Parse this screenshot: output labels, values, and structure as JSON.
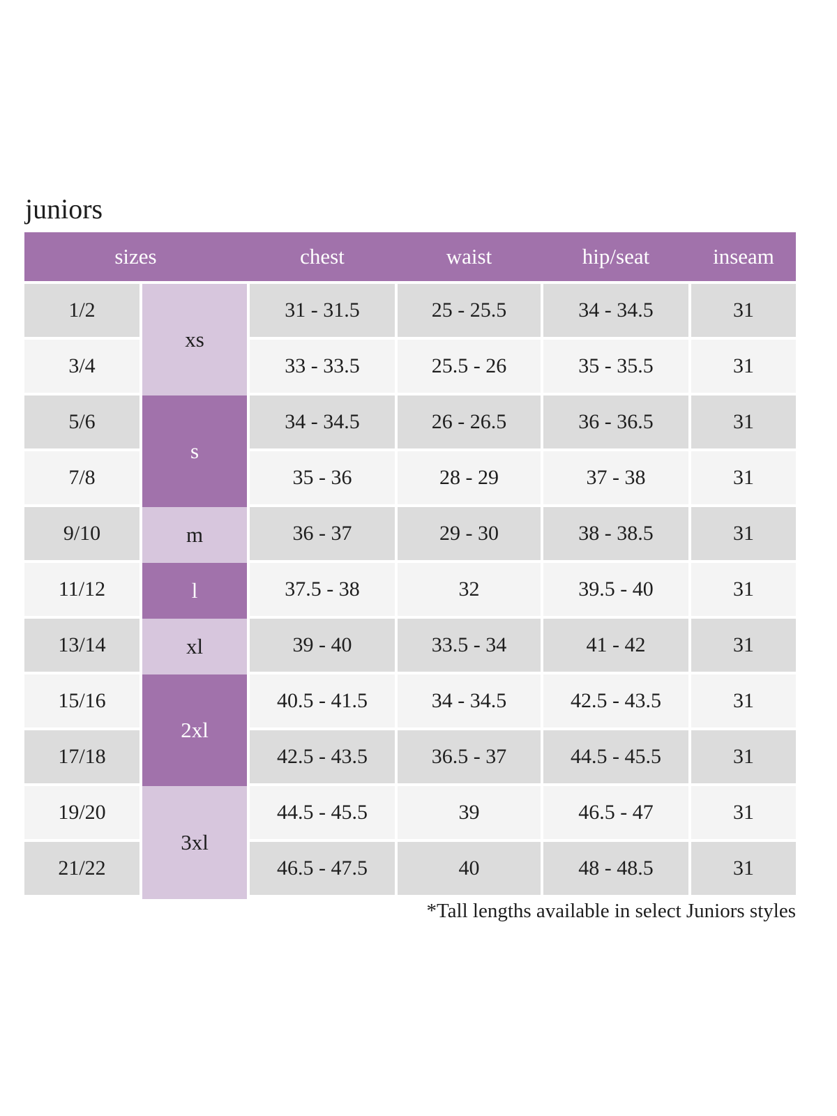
{
  "chart_data": {
    "type": "table",
    "title": "juniors",
    "columns": [
      "sizes",
      "chest",
      "waist",
      "hip/seat",
      "inseam"
    ],
    "size_groups": [
      {
        "label": "xs",
        "row_span": 2,
        "shade": "light"
      },
      {
        "label": "s",
        "row_span": 2,
        "shade": "dark"
      },
      {
        "label": "m",
        "row_span": 1,
        "shade": "light"
      },
      {
        "label": "l",
        "row_span": 1,
        "shade": "dark"
      },
      {
        "label": "xl",
        "row_span": 1,
        "shade": "light"
      },
      {
        "label": "2xl",
        "row_span": 2,
        "shade": "dark"
      },
      {
        "label": "3xl",
        "row_span": 2,
        "shade": "light"
      }
    ],
    "rows": [
      {
        "size": "1/2",
        "chest": "31 - 31.5",
        "waist": "25 - 25.5",
        "hip_seat": "34 - 34.5",
        "inseam": "31"
      },
      {
        "size": "3/4",
        "chest": "33 - 33.5",
        "waist": "25.5 - 26",
        "hip_seat": "35 - 35.5",
        "inseam": "31"
      },
      {
        "size": "5/6",
        "chest": "34 - 34.5",
        "waist": "26 - 26.5",
        "hip_seat": "36 - 36.5",
        "inseam": "31"
      },
      {
        "size": "7/8",
        "chest": "35 - 36",
        "waist": "28 - 29",
        "hip_seat": "37 - 38",
        "inseam": "31"
      },
      {
        "size": "9/10",
        "chest": "36 - 37",
        "waist": "29 - 30",
        "hip_seat": "38 - 38.5",
        "inseam": "31"
      },
      {
        "size": "11/12",
        "chest": "37.5 - 38",
        "waist": "32",
        "hip_seat": "39.5 - 40",
        "inseam": "31"
      },
      {
        "size": "13/14",
        "chest": "39 - 40",
        "waist": "33.5 - 34",
        "hip_seat": "41 - 42",
        "inseam": "31"
      },
      {
        "size": "15/16",
        "chest": "40.5 - 41.5",
        "waist": "34 - 34.5",
        "hip_seat": "42.5 - 43.5",
        "inseam": "31"
      },
      {
        "size": "17/18",
        "chest": "42.5 - 43.5",
        "waist": "36.5 - 37",
        "hip_seat": "44.5 - 45.5",
        "inseam": "31"
      },
      {
        "size": "19/20",
        "chest": "44.5 - 45.5",
        "waist": "39",
        "hip_seat": "46.5 - 47",
        "inseam": "31"
      },
      {
        "size": "21/22",
        "chest": "46.5 - 47.5",
        "waist": "40",
        "hip_seat": "48 - 48.5",
        "inseam": "31"
      }
    ],
    "footnote": "*Tall lengths available in select Juniors styles"
  },
  "colors": {
    "header_purple": "#a172ab",
    "dark_purple": "#a172ab",
    "light_purple": "#d7c6dd",
    "row_gray": "#dcdcdc",
    "row_light": "#f4f4f4",
    "header_text": "#ffffff",
    "text": "#1d1d1d",
    "background": "#ffffff"
  }
}
